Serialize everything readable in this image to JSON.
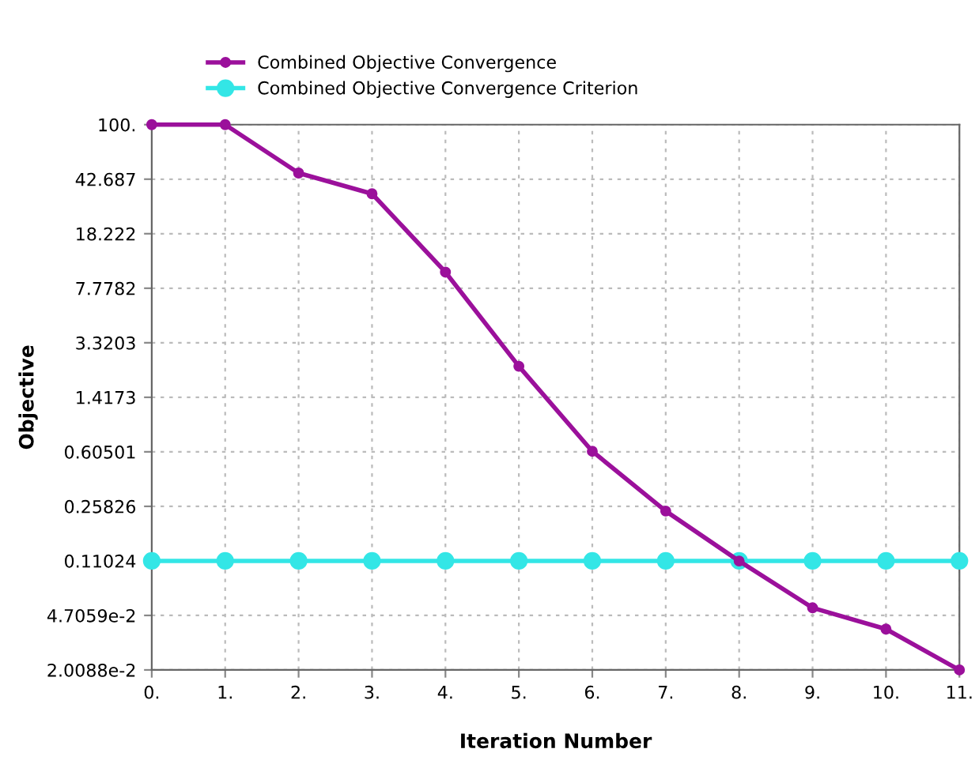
{
  "chart_data": {
    "type": "line",
    "xlabel": "Iteration Number",
    "ylabel": "Objective",
    "log": "y",
    "x": [
      0,
      1,
      2,
      3,
      4,
      5,
      6,
      7,
      8,
      9,
      10,
      11
    ],
    "series": [
      {
        "name": "Combined Objective Convergence",
        "color": "#9b109b",
        "values": [
          100,
          100,
          47,
          34,
          10,
          2.3,
          0.61,
          0.24,
          0.11,
          0.053,
          0.038,
          0.020088
        ],
        "marker": "circle"
      },
      {
        "name": "Combined Objective Convergence Criterion",
        "color": "#33e6e6",
        "values": [
          0.11024,
          0.11024,
          0.11024,
          0.11024,
          0.11024,
          0.11024,
          0.11024,
          0.11024,
          0.11024,
          0.11024,
          0.11024,
          0.11024
        ],
        "marker": "circle"
      }
    ],
    "xlim": [
      0,
      11
    ],
    "xticks": [
      {
        "value": 0,
        "label": "0."
      },
      {
        "value": 1,
        "label": "1."
      },
      {
        "value": 2,
        "label": "2."
      },
      {
        "value": 3,
        "label": "3."
      },
      {
        "value": 4,
        "label": "4."
      },
      {
        "value": 5,
        "label": "5."
      },
      {
        "value": 6,
        "label": "6."
      },
      {
        "value": 7,
        "label": "7."
      },
      {
        "value": 8,
        "label": "8."
      },
      {
        "value": 9,
        "label": "9."
      },
      {
        "value": 10,
        "label": "10."
      },
      {
        "value": 11,
        "label": "11."
      }
    ],
    "ylim": [
      0.020088,
      100
    ],
    "yticks": [
      {
        "value": 100,
        "label": "100."
      },
      42.687,
      18.222,
      7.7782,
      3.3203,
      1.4173,
      0.60501,
      0.25826,
      0.11024,
      {
        "value": 0.047059,
        "label": "4.7059e-2"
      },
      {
        "value": 0.020088,
        "label": "2.0088e-2"
      }
    ],
    "grid": true,
    "legend": "top",
    "line_style": "solid"
  }
}
